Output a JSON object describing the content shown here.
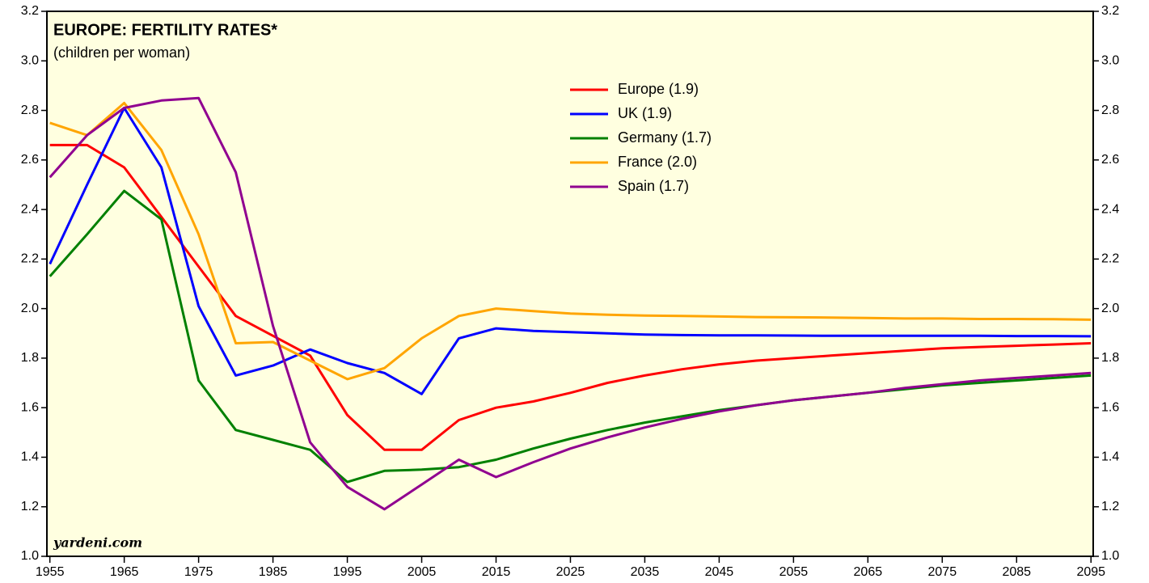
{
  "chart_data": {
    "type": "line",
    "title": "EUROPE: FERTILITY RATES*",
    "subtitle": "(children per woman)",
    "source": "yardeni.com",
    "x": [
      1955,
      1960,
      1965,
      1970,
      1975,
      1980,
      1985,
      1990,
      1995,
      2000,
      2005,
      2010,
      2015,
      2020,
      2025,
      2030,
      2035,
      2040,
      2045,
      2050,
      2055,
      2060,
      2065,
      2070,
      2075,
      2080,
      2085,
      2090,
      2095
    ],
    "series": [
      {
        "name": "Europe (1.9)",
        "color": "#ff0000",
        "values": [
          2.66,
          2.66,
          2.57,
          2.37,
          2.17,
          1.97,
          1.89,
          1.81,
          1.57,
          1.43,
          1.43,
          1.55,
          1.6,
          1.625,
          1.66,
          1.7,
          1.73,
          1.755,
          1.775,
          1.79,
          1.8,
          1.81,
          1.82,
          1.83,
          1.84,
          1.845,
          1.85,
          1.855,
          1.86
        ]
      },
      {
        "name": "UK (1.9)",
        "color": "#0000ff",
        "values": [
          2.18,
          2.5,
          2.81,
          2.57,
          2.01,
          1.73,
          1.77,
          1.835,
          1.78,
          1.74,
          1.655,
          1.88,
          1.92,
          1.91,
          1.905,
          1.9,
          1.895,
          1.893,
          1.892,
          1.892,
          1.891,
          1.89,
          1.89,
          1.89,
          1.89,
          1.89,
          1.889,
          1.889,
          1.888
        ]
      },
      {
        "name": "Germany (1.7)",
        "color": "#008000",
        "values": [
          2.13,
          2.3,
          2.475,
          2.36,
          1.71,
          1.51,
          1.47,
          1.43,
          1.3,
          1.345,
          1.35,
          1.36,
          1.39,
          1.435,
          1.475,
          1.51,
          1.54,
          1.565,
          1.59,
          1.61,
          1.63,
          1.645,
          1.66,
          1.675,
          1.69,
          1.7,
          1.71,
          1.72,
          1.73
        ]
      },
      {
        "name": "France (2.0)",
        "color": "#ffa500",
        "values": [
          2.75,
          2.7,
          2.83,
          2.64,
          2.3,
          1.86,
          1.865,
          1.79,
          1.715,
          1.76,
          1.88,
          1.97,
          2.0,
          1.99,
          1.98,
          1.975,
          1.972,
          1.97,
          1.968,
          1.966,
          1.965,
          1.964,
          1.962,
          1.96,
          1.96,
          1.958,
          1.958,
          1.957,
          1.955
        ]
      },
      {
        "name": "Spain (1.7)",
        "color": "#900090",
        "values": [
          2.53,
          2.7,
          2.81,
          2.84,
          2.85,
          2.55,
          1.93,
          1.46,
          1.28,
          1.19,
          1.29,
          1.39,
          1.32,
          1.38,
          1.435,
          1.48,
          1.52,
          1.555,
          1.585,
          1.61,
          1.63,
          1.645,
          1.66,
          1.68,
          1.695,
          1.71,
          1.72,
          1.73,
          1.74
        ]
      }
    ],
    "xlim": [
      1954.6,
      2095.3
    ],
    "xticks": [
      1955,
      1965,
      1975,
      1985,
      1995,
      2005,
      2015,
      2025,
      2035,
      2045,
      2055,
      2065,
      2075,
      2085,
      2095
    ],
    "ylim": [
      1.0,
      3.2
    ],
    "yticks": [
      {
        "value": 1.0,
        "label": "1.0"
      },
      1.2,
      1.4,
      1.6,
      1.8,
      {
        "value": 2.0,
        "label": "2.0"
      },
      2.2,
      2.4,
      2.6,
      2.8,
      {
        "value": 3.0,
        "label": "3.0"
      },
      3.2
    ],
    "y2lim": [
      1.0,
      3.2
    ],
    "y2ticks": [
      {
        "value": 1.0,
        "label": "1.0"
      },
      1.2,
      1.4,
      1.6,
      1.8,
      {
        "value": 2.0,
        "label": "2.0"
      },
      2.2,
      2.4,
      2.6,
      2.8,
      {
        "value": 3.0,
        "label": "3.0"
      },
      3.2
    ],
    "background": "#ffffe0"
  }
}
